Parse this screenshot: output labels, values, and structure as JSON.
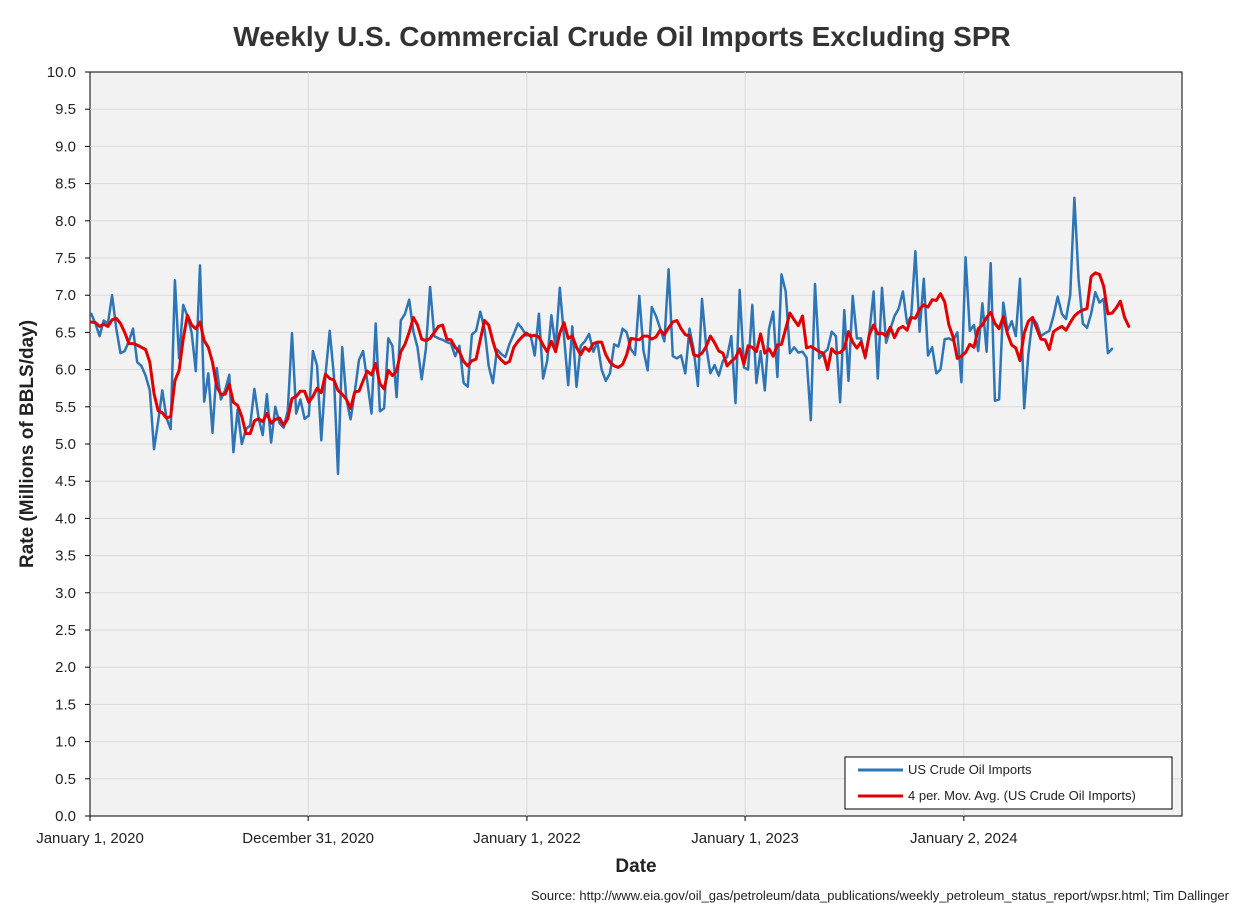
{
  "chart_data": {
    "type": "line",
    "title": "Weekly U.S. Commercial Crude Oil Imports Excluding SPR",
    "xlabel": "Date",
    "ylabel": "Rate (Millions of BBLS/day)",
    "source": "Source: http://www.eia.gov/oil_gas/petroleum/data_publications/weekly_petroleum_status_report/wpsr.html; Tim Dallinger",
    "ylim": [
      0,
      10
    ],
    "y_ticks": [
      "0.0",
      "0.5",
      "1.0",
      "1.5",
      "2.0",
      "2.5",
      "3.0",
      "3.5",
      "4.0",
      "4.5",
      "5.0",
      "5.5",
      "6.0",
      "6.5",
      "7.0",
      "7.5",
      "8.0",
      "8.5",
      "9.0",
      "9.5",
      "10.0"
    ],
    "x_range": [
      "2020-01-01",
      "2025-01-01"
    ],
    "x_ticks": [
      {
        "date": "2020-01-01",
        "label": "January 1, 2020"
      },
      {
        "date": "2020-12-31",
        "label": "December 31, 2020"
      },
      {
        "date": "2022-01-01",
        "label": "January 1, 2022"
      },
      {
        "date": "2023-01-01",
        "label": "January 1, 2023"
      },
      {
        "date": "2024-01-02",
        "label": "January 2, 2024"
      }
    ],
    "grid": true,
    "legend_position": "bottom-right",
    "x_date_step_days": 7,
    "series": [
      {
        "name": "US Crude Oil Imports",
        "color": "#2e75b6",
        "x_start": "2020-01-03",
        "values": [
          6.75,
          6.62,
          6.45,
          6.66,
          6.62,
          7.0,
          6.55,
          6.22,
          6.25,
          6.38,
          6.55,
          6.1,
          6.05,
          5.92,
          5.72,
          4.93,
          5.3,
          5.72,
          5.35,
          5.2,
          7.2,
          6.15,
          6.87,
          6.72,
          6.5,
          5.98,
          7.4,
          5.57,
          5.95,
          5.15,
          6.02,
          5.6,
          5.72,
          5.93,
          4.89,
          5.46,
          5.0,
          5.2,
          5.25,
          5.74,
          5.35,
          5.12,
          5.67,
          5.02,
          5.5,
          5.28,
          5.22,
          5.45,
          6.49,
          5.41,
          5.6,
          5.34,
          5.38,
          6.25,
          6.05,
          5.05,
          5.93,
          6.52,
          5.92,
          4.6,
          6.3,
          5.6,
          5.33,
          5.7,
          6.13,
          6.25,
          5.84,
          5.41,
          6.62,
          5.44,
          5.48,
          6.42,
          6.32,
          5.63,
          6.66,
          6.75,
          6.94,
          6.51,
          6.3,
          5.87,
          6.28,
          7.11,
          6.45,
          6.42,
          6.4,
          6.37,
          6.35,
          6.18,
          6.32,
          5.82,
          5.77,
          6.47,
          6.52,
          6.78,
          6.55,
          6.05,
          5.82,
          6.27,
          6.21,
          6.17,
          6.35,
          6.48,
          6.62,
          6.55,
          6.46,
          6.47,
          6.19,
          6.75,
          5.88,
          6.12,
          6.73,
          6.29,
          7.1,
          6.45,
          5.79,
          6.58,
          5.77,
          6.32,
          6.38,
          6.48,
          6.24,
          6.37,
          6.0,
          5.85,
          5.95,
          6.34,
          6.31,
          6.55,
          6.5,
          6.27,
          6.2,
          6.99,
          6.25,
          5.99,
          6.84,
          6.72,
          6.55,
          6.38,
          7.35,
          6.18,
          6.15,
          6.19,
          5.95,
          6.55,
          6.27,
          5.78,
          6.95,
          6.31,
          5.95,
          6.06,
          5.92,
          6.12,
          6.17,
          6.45,
          5.55,
          7.07,
          6.03,
          6.0,
          6.87,
          5.82,
          6.25,
          5.72,
          6.55,
          6.78,
          5.9,
          7.28,
          7.05,
          6.22,
          6.3,
          6.23,
          6.24,
          6.16,
          5.32,
          7.15,
          6.15,
          6.22,
          6.27,
          6.51,
          6.45,
          5.56,
          6.8,
          5.85,
          6.99,
          6.42,
          6.42,
          6.15,
          6.5,
          7.05,
          5.88,
          7.1,
          6.36,
          6.54,
          6.72,
          6.82,
          7.05,
          6.62,
          6.72,
          7.59,
          6.51,
          7.22,
          6.19,
          6.3,
          5.95,
          6.0,
          6.41,
          6.42,
          6.39,
          6.5,
          5.83,
          7.51,
          6.52,
          6.6,
          6.25,
          6.89,
          6.24,
          7.43,
          5.58,
          5.6,
          6.9,
          6.52,
          6.65,
          6.45,
          7.22,
          5.48,
          6.21,
          6.69,
          6.62,
          6.45,
          6.49,
          6.52,
          6.72,
          6.98,
          6.75,
          6.68,
          7.0,
          8.31,
          7.21,
          6.62,
          6.56,
          6.75,
          7.04,
          6.9,
          6.95,
          6.22,
          6.28
        ]
      },
      {
        "name": "4 per. Mov. Avg. (US Crude Oil Imports)",
        "color": "#e00000",
        "x_start": "2020-01-03",
        "values": [
          6.64,
          6.63,
          6.58,
          6.61,
          6.58,
          6.67,
          6.69,
          6.62,
          6.5,
          6.35,
          6.35,
          6.33,
          6.3,
          6.27,
          6.1,
          5.68,
          5.45,
          5.42,
          5.35,
          5.37,
          5.85,
          5.99,
          6.41,
          6.73,
          6.6,
          6.55,
          6.64,
          6.39,
          6.3,
          6.1,
          5.77,
          5.67,
          5.67,
          5.8,
          5.56,
          5.52,
          5.37,
          5.14,
          5.14,
          5.31,
          5.34,
          5.3,
          5.41,
          5.28,
          5.33,
          5.35,
          5.25,
          5.34,
          5.61,
          5.64,
          5.71,
          5.71,
          5.56,
          5.64,
          5.75,
          5.69,
          5.94,
          5.88,
          5.86,
          5.72,
          5.67,
          5.6,
          5.48,
          5.7,
          5.71,
          5.85,
          5.98,
          5.93,
          6.08,
          5.81,
          5.74,
          5.99,
          5.92,
          5.98,
          6.24,
          6.34,
          6.5,
          6.7,
          6.6,
          6.41,
          6.39,
          6.42,
          6.5,
          6.58,
          6.6,
          6.41,
          6.4,
          6.3,
          6.24,
          6.11,
          6.05,
          6.12,
          6.14,
          6.4,
          6.66,
          6.6,
          6.38,
          6.2,
          6.13,
          6.08,
          6.11,
          6.3,
          6.38,
          6.44,
          6.49,
          6.45,
          6.46,
          6.44,
          6.33,
          6.24,
          6.38,
          6.24,
          6.49,
          6.63,
          6.42,
          6.45,
          6.3,
          6.2,
          6.3,
          6.25,
          6.35,
          6.37,
          6.37,
          6.2,
          6.1,
          6.05,
          6.03,
          6.07,
          6.2,
          6.42,
          6.41,
          6.4,
          6.45,
          6.45,
          6.41,
          6.44,
          6.53,
          6.47,
          6.56,
          6.64,
          6.66,
          6.55,
          6.47,
          6.45,
          6.2,
          6.18,
          6.22,
          6.31,
          6.45,
          6.36,
          6.25,
          6.22,
          6.05,
          6.11,
          6.16,
          6.28,
          6.07,
          6.32,
          6.3,
          6.24,
          6.48,
          6.22,
          6.28,
          6.18,
          6.33,
          6.34,
          6.55,
          6.76,
          6.67,
          6.59,
          6.72,
          6.29,
          6.31,
          6.28,
          6.24,
          6.22,
          6.0,
          6.28,
          6.22,
          6.23,
          6.28,
          6.51,
          6.37,
          6.29,
          6.37,
          6.17,
          6.47,
          6.6,
          6.48,
          6.49,
          6.45,
          6.57,
          6.43,
          6.55,
          6.58,
          6.53,
          6.7,
          6.69,
          6.81,
          6.87,
          6.84,
          6.94,
          6.93,
          7.02,
          6.91,
          6.6,
          6.44,
          6.15,
          6.18,
          6.23,
          6.34,
          6.3,
          6.55,
          6.6,
          6.7,
          6.77,
          6.62,
          6.55,
          6.71,
          6.48,
          6.33,
          6.29,
          6.12,
          6.49,
          6.65,
          6.7,
          6.55,
          6.41,
          6.4,
          6.27,
          6.51,
          6.55,
          6.58,
          6.53,
          6.63,
          6.72,
          6.77,
          6.8,
          6.82,
          7.25,
          7.3,
          7.28,
          7.12,
          6.75,
          6.76,
          6.83,
          6.92,
          6.7,
          6.58
        ]
      }
    ]
  }
}
